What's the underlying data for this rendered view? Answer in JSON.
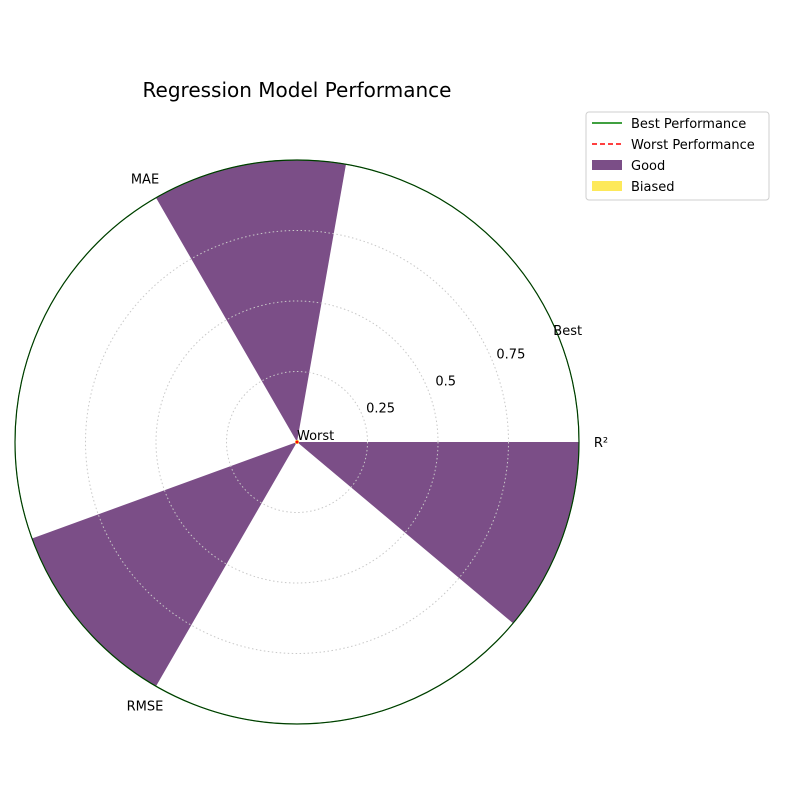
{
  "chart_data": {
    "type": "radar",
    "title": "Regression Model Performance",
    "axes": [
      "R²",
      "MAE",
      "RMSE"
    ],
    "rlim": [
      0,
      1
    ],
    "r_ticks": [
      0.25,
      0.5,
      0.75
    ],
    "r_tick_labels": [
      "0.25",
      "0.5",
      "0.75"
    ],
    "best_label": "Best",
    "worst_label": "Worst",
    "grid": true,
    "legend_position": "upper-right-outside",
    "reference_lines": [
      {
        "name": "Best Performance",
        "value": 1.0,
        "color": "#008000",
        "style": "solid"
      },
      {
        "name": "Worst Performance",
        "value": 0.0,
        "color": "#ff0000",
        "style": "dashed"
      }
    ],
    "series": [
      {
        "name": "Good",
        "values": [
          1.0,
          1.0,
          1.0
        ],
        "color": "#7b4e87",
        "angle_offset_deg": -20
      },
      {
        "name": "Biased",
        "values": [
          0.0,
          0.0,
          0.0
        ],
        "color": "#fde95a",
        "angle_offset_deg": 20
      }
    ]
  }
}
